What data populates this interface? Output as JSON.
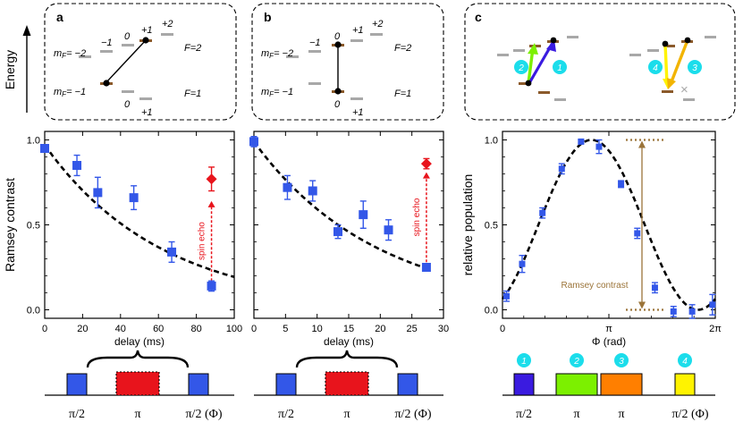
{
  "colors": {
    "blue": "#3357E8",
    "red": "#E8141C",
    "brown": "#8B5A2B",
    "gray": "#A8A8A8",
    "cyan": "#1BDDEB",
    "purple": "#3A1BE0",
    "green": "#7CF000",
    "orange": "#FF7F00",
    "yellow": "#FFF300",
    "gold": "#F2B400",
    "lime": "#C8FF00",
    "dashed_line": "#000000",
    "ramsey_brown": "#9B7439",
    "echo_red": "#E8141C"
  },
  "energy_axis": {
    "label": "Energy"
  },
  "panels": {
    "a": {
      "letter": "a",
      "labels": {
        "mf_upper": "m",
        "mf_upper_sub": "F",
        "mf_upper_val": "= −2",
        "m1u": "−1",
        "m0u": "0",
        "p1u": "+1",
        "p2u": "+2",
        "f2": "F=2",
        "mf_lower": "m",
        "mf_lower_sub": "F",
        "mf_lower_val": "= −1",
        "m0l": "0",
        "p1l": "+1",
        "f1": "F=1"
      }
    },
    "b": {
      "letter": "b",
      "labels": {
        "mf_upper": "m",
        "mf_upper_sub": "F",
        "mf_upper_val": "= −2",
        "m1u": "−1",
        "m0u": "0",
        "p1u": "+1",
        "p2u": "+2",
        "f2": "F=2",
        "mf_lower": "m",
        "mf_lower_sub": "F",
        "mf_lower_val": "= −1",
        "m0l": "0",
        "p1l": "+1",
        "f1": "F=1"
      }
    },
    "c": {
      "letter": "c",
      "circles": [
        "1",
        "2",
        "3",
        "4"
      ],
      "cross": "×"
    }
  },
  "chart_data": [
    {
      "id": "panel-a-plot",
      "type": "scatter",
      "ylabel": "Ramsey contrast",
      "xlabel": "delay (ms)",
      "xlim": [
        0,
        100
      ],
      "ylim": [
        -0.05,
        1.05
      ],
      "xticks": [
        0,
        20,
        40,
        60,
        80,
        100
      ],
      "yticks": [
        0.0,
        0.5,
        1.0
      ],
      "yticklabels": [
        "0.0",
        "0.5",
        "1.0"
      ],
      "series": [
        {
          "name": "Ramsey",
          "marker": "square",
          "color": "#3357E8",
          "x": [
            0,
            17,
            28,
            47,
            67,
            88
          ],
          "y": [
            0.95,
            0.85,
            0.69,
            0.66,
            0.34,
            0.14
          ],
          "err": [
            0.02,
            0.06,
            0.09,
            0.07,
            0.06,
            0.03
          ],
          "xerr": [
            0.8,
            0.8,
            0.8,
            0.8,
            0.8,
            0.8
          ]
        },
        {
          "name": "spin echo",
          "marker": "diamond",
          "color": "#E8141C",
          "x": [
            88
          ],
          "y": [
            0.77
          ],
          "err": [
            0.07
          ]
        }
      ],
      "fit": {
        "style": "dashed",
        "x": [
          0,
          100
        ],
        "model": "exp",
        "A": 0.97,
        "tau": 62
      },
      "annotation": {
        "text": "spin echo",
        "x": 88,
        "y_from": 0.17,
        "y_to": 0.64
      }
    },
    {
      "id": "panel-b-plot",
      "type": "scatter",
      "xlabel": "delay (ms)",
      "xlim": [
        0,
        30
      ],
      "ylim": [
        -0.05,
        1.05
      ],
      "xticks": [
        0,
        5,
        10,
        15,
        20,
        25,
        30
      ],
      "yticks": [
        0.0,
        0.5,
        1.0
      ],
      "series": [
        {
          "name": "Ramsey",
          "marker": "square",
          "color": "#3357E8",
          "x": [
            0,
            5.3,
            9.3,
            13.3,
            17.3,
            21.3,
            27.3
          ],
          "y": [
            0.99,
            0.72,
            0.7,
            0.46,
            0.56,
            0.47,
            0.25
          ],
          "err": [
            0.03,
            0.07,
            0.06,
            0.04,
            0.08,
            0.06,
            0.02
          ],
          "xerr": [
            0.3,
            0.3,
            0.3,
            0.3,
            0.3,
            0.3,
            0.3
          ]
        },
        {
          "name": "spin echo",
          "marker": "diamond",
          "color": "#E8141C",
          "x": [
            27.3
          ],
          "y": [
            0.86
          ],
          "err": [
            0.03
          ]
        }
      ],
      "fit": {
        "style": "dashed",
        "x": [
          0,
          28
        ],
        "model": "exp",
        "A": 0.99,
        "tau": 19.5
      },
      "annotation": {
        "text": "spin echo",
        "x": 27.3,
        "y_from": 0.28,
        "y_to": 0.81
      }
    },
    {
      "id": "panel-c-plot",
      "type": "scatter",
      "ylabel": "relative population",
      "xlabel": "Φ (rad)",
      "xlim": [
        0,
        6.2832
      ],
      "ylim": [
        -0.05,
        1.05
      ],
      "xticks": [
        0,
        3.1416,
        6.2832
      ],
      "xticklabels": [
        "0",
        "π",
        "2π"
      ],
      "yticks": [
        0.0,
        0.5,
        1.0
      ],
      "yticklabels": [
        "0.0",
        "0.5",
        "1.0"
      ],
      "series": [
        {
          "name": "population",
          "marker": "square",
          "color": "#3357E8",
          "x": [
            0.12,
            0.58,
            1.18,
            1.75,
            2.32,
            2.85,
            3.5,
            3.98,
            4.5,
            5.05,
            5.6,
            6.2
          ],
          "y": [
            0.08,
            0.27,
            0.57,
            0.83,
            0.99,
            0.96,
            0.74,
            0.45,
            0.13,
            -0.01,
            -0.01,
            0.03
          ],
          "err": [
            0.03,
            0.05,
            0.03,
            0.03,
            0.01,
            0.04,
            0.02,
            0.03,
            0.03,
            0.03,
            0.04,
            0.06
          ]
        }
      ],
      "fit": {
        "style": "dashed",
        "model": "cos",
        "amp": 0.5,
        "offset": 0.5,
        "phase": 2.63
      },
      "annotation": {
        "text": "Ramsey contrast",
        "y_top": 1.0,
        "y_bottom": 0.0
      }
    }
  ],
  "pulses_ab": {
    "labels": [
      "π/2",
      "π",
      "π/2 (Φ)"
    ]
  },
  "pulses_c": {
    "labels": [
      "π/2",
      "π",
      "π",
      "π/2 (Φ)"
    ],
    "numbers": [
      "1",
      "2",
      "3",
      "4"
    ]
  }
}
